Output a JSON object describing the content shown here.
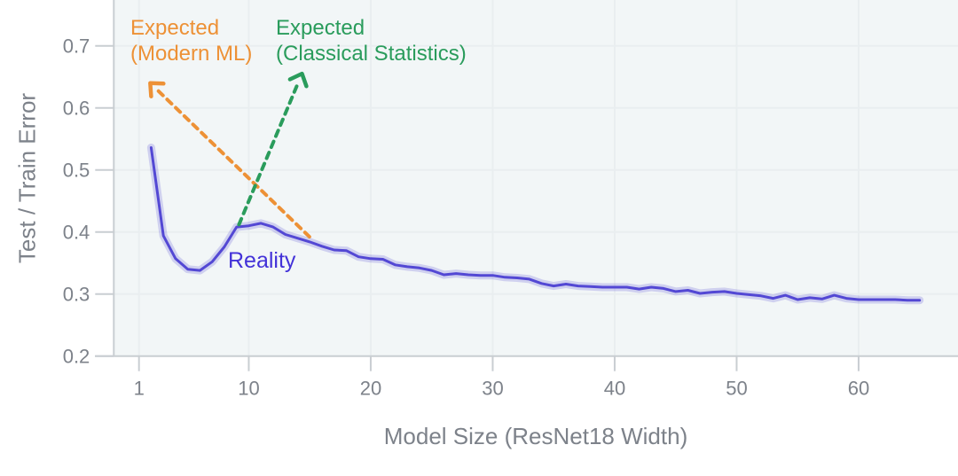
{
  "figure": {
    "background": "#ffffff",
    "plot_background": "#f2f6f7",
    "grid_color": "#e9eef0",
    "axis_color": "#c9ced2",
    "tick_label_color": "#7d828a",
    "axis_title_color": "#7d828a"
  },
  "annotations": {
    "modern_ml": {
      "line1": "Expected",
      "line2": "(Modern ML)",
      "color": "#ED9136"
    },
    "classical": {
      "line1": "Expected",
      "line2": "(Classical Statistics)",
      "color": "#2A9C5C"
    },
    "reality": {
      "label": "Reality",
      "color": "#4332D8"
    }
  },
  "chart_data": {
    "type": "line",
    "title": "",
    "xlabel": "Model Size (ResNet18 Width)",
    "ylabel": "Test / Train Error",
    "xlim": [
      -1,
      68
    ],
    "ylim": [
      0.2,
      0.775
    ],
    "grid": true,
    "legend_position": "none",
    "x_ticks": [
      1,
      10,
      20,
      30,
      40,
      50,
      60
    ],
    "x_tick_labels": [
      "1",
      "10",
      "20",
      "30",
      "40",
      "50",
      "60"
    ],
    "y_ticks": [
      0.2,
      0.3,
      0.4,
      0.5,
      0.6,
      0.7
    ],
    "y_tick_labels": [
      "0.2",
      "0.3",
      "0.4",
      "0.5",
      "0.6",
      "0.7"
    ],
    "series": [
      {
        "name": "Reality",
        "color": "#5348D4",
        "style": "solid",
        "band": true,
        "arrow": null,
        "x": [
          2,
          3,
          4,
          5,
          6,
          7,
          8,
          9,
          10,
          11,
          12,
          13,
          14,
          15,
          16,
          17,
          18,
          19,
          20,
          21,
          22,
          23,
          24,
          25,
          26,
          27,
          28,
          29,
          30,
          31,
          32,
          33,
          34,
          35,
          36,
          37,
          38,
          39,
          40,
          41,
          42,
          43,
          44,
          45,
          46,
          47,
          48,
          49,
          50,
          51,
          52,
          53,
          54,
          55,
          56,
          57,
          58,
          59,
          60,
          61,
          62,
          63,
          64,
          65
        ],
        "y": [
          0.536,
          0.394,
          0.357,
          0.34,
          0.338,
          0.352,
          0.376,
          0.408,
          0.41,
          0.414,
          0.408,
          0.396,
          0.39,
          0.384,
          0.377,
          0.371,
          0.37,
          0.36,
          0.357,
          0.356,
          0.347,
          0.344,
          0.342,
          0.338,
          0.331,
          0.333,
          0.331,
          0.33,
          0.33,
          0.327,
          0.326,
          0.324,
          0.317,
          0.313,
          0.316,
          0.313,
          0.312,
          0.311,
          0.311,
          0.311,
          0.308,
          0.311,
          0.309,
          0.304,
          0.306,
          0.301,
          0.303,
          0.304,
          0.301,
          0.299,
          0.297,
          0.293,
          0.298,
          0.291,
          0.294,
          0.292,
          0.298,
          0.293,
          0.291,
          0.291,
          0.291,
          0.291,
          0.29,
          0.29
        ]
      },
      {
        "name": "Expected (Modern ML)",
        "color": "#ED9136",
        "style": "dashed",
        "band": false,
        "arrow": "start",
        "x": [
          2.6,
          15.2
        ],
        "y": [
          0.627,
          0.388
        ]
      },
      {
        "name": "Expected (Classical Statistics)",
        "color": "#2A9C5C",
        "style": "dashed",
        "band": false,
        "arrow": "end",
        "x": [
          9.2,
          14.0
        ],
        "y": [
          0.412,
          0.638
        ]
      }
    ]
  }
}
